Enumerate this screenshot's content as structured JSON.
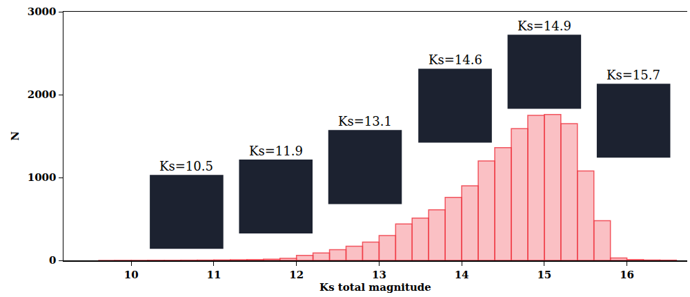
{
  "chart_data": {
    "type": "histogram",
    "xlabel": "Ks total magnitude",
    "ylabel": "N",
    "bins": [
      9.6,
      9.8,
      10.0,
      10.2,
      10.4,
      10.6,
      10.8,
      11.0,
      11.2,
      11.4,
      11.6,
      11.8,
      12.0,
      12.2,
      12.4,
      12.6,
      12.8,
      13.0,
      13.2,
      13.4,
      13.6,
      13.8,
      14.0,
      14.2,
      14.4,
      14.6,
      14.8,
      15.0,
      15.2,
      15.4,
      15.6,
      15.8,
      16.0,
      16.2,
      16.4,
      16.6
    ],
    "values": [
      0,
      1,
      1,
      2,
      2,
      3,
      4,
      6,
      8,
      10,
      14,
      25,
      60,
      90,
      130,
      170,
      220,
      300,
      440,
      510,
      610,
      760,
      900,
      1200,
      1360,
      1590,
      1750,
      1760,
      1650,
      1080,
      480,
      30,
      10,
      5,
      3
    ],
    "color": "#f03c46",
    "xlim": [
      9.18,
      16.73
    ],
    "ylim": [
      0,
      3000
    ],
    "xticks": [
      10,
      11,
      12,
      13,
      14,
      15,
      16
    ],
    "yticks": [
      0,
      1000,
      2000,
      3000
    ],
    "grid": false,
    "annotations": [
      {
        "text": "Ks=10.5",
        "x": 10.67,
        "y": 1140
      },
      {
        "text": "Ks=11.9",
        "x": 11.75,
        "y": 1325
      },
      {
        "text": "Ks=13.1",
        "x": 12.83,
        "y": 1680
      },
      {
        "text": "Ks=14.6",
        "x": 13.92,
        "y": 2420
      },
      {
        "text": "Ks=14.9",
        "x": 15.0,
        "y": 2830
      },
      {
        "text": "Ks=15.7",
        "x": 16.08,
        "y": 2240
      }
    ]
  }
}
